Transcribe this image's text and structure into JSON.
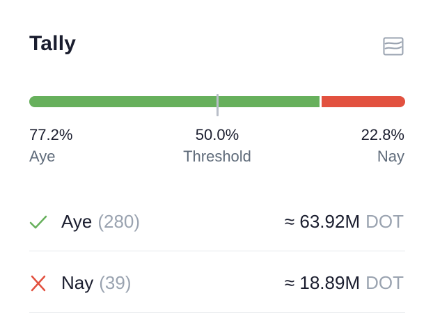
{
  "tally": {
    "title": "Tally",
    "chart_icon": "chart-area-icon",
    "aye_fraction": 0.772,
    "threshold_fraction": 0.5,
    "aye_percent": "77.2%",
    "aye_label": "Aye",
    "threshold_percent": "50.0%",
    "threshold_label": "Threshold",
    "nay_percent": "22.8%",
    "nay_label": "Nay"
  },
  "votes": {
    "aye": {
      "icon": "check-icon",
      "label": "Aye",
      "count": "(280)",
      "amount": "≈ 63.92M",
      "unit": "DOT"
    },
    "nay": {
      "icon": "cross-icon",
      "label": "Nay",
      "count": "(39)",
      "amount": "≈ 18.89M",
      "unit": "DOT"
    }
  },
  "colors": {
    "aye": "#67b05c",
    "nay": "#e2513f",
    "threshold": "#b9bec8"
  }
}
